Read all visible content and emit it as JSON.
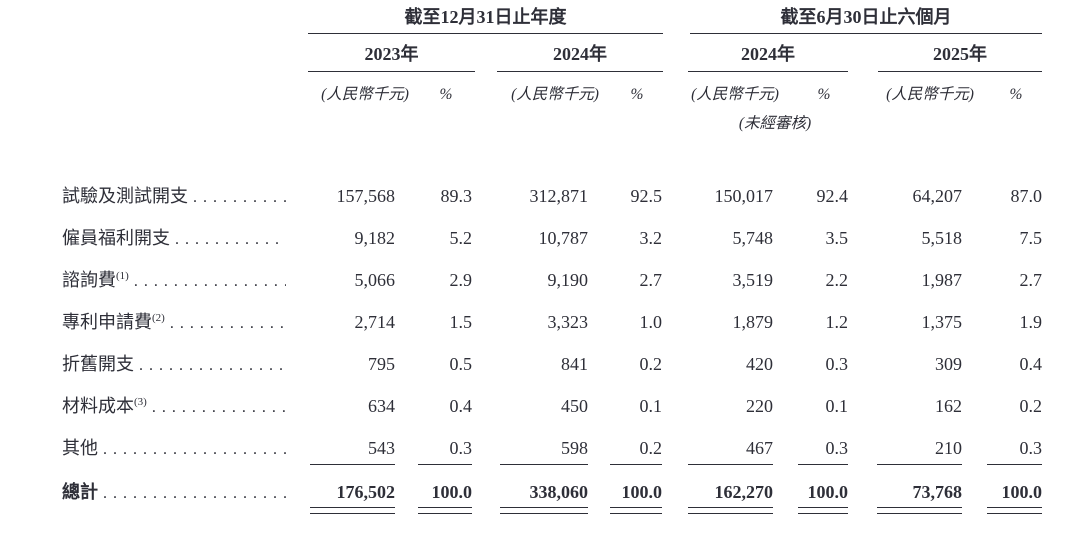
{
  "theme": {
    "ink": "#2e2f38"
  },
  "table": {
    "period_groups": [
      {
        "title": "截至12月31日止年度"
      },
      {
        "title": "截至6月30日止六個月"
      }
    ],
    "year_columns": [
      {
        "label": "2023年"
      },
      {
        "label": "2024年"
      },
      {
        "label": "2024年",
        "note": "(未經審核)"
      },
      {
        "label": "2025年"
      }
    ],
    "subheaders": {
      "amount": "(人民幣千元)",
      "percent": "%"
    },
    "rows": [
      {
        "label": "試驗及測試開支",
        "sup": "",
        "values": [
          "157,568",
          "89.3",
          "312,871",
          "92.5",
          "150,017",
          "92.4",
          "64,207",
          "87.0"
        ]
      },
      {
        "label": "僱員福利開支",
        "sup": "",
        "values": [
          "9,182",
          "5.2",
          "10,787",
          "3.2",
          "5,748",
          "3.5",
          "5,518",
          "7.5"
        ]
      },
      {
        "label": "諮詢費",
        "sup": "(1)",
        "values": [
          "5,066",
          "2.9",
          "9,190",
          "2.7",
          "3,519",
          "2.2",
          "1,987",
          "2.7"
        ]
      },
      {
        "label": "專利申請費",
        "sup": "(2)",
        "values": [
          "2,714",
          "1.5",
          "3,323",
          "1.0",
          "1,879",
          "1.2",
          "1,375",
          "1.9"
        ]
      },
      {
        "label": "折舊開支",
        "sup": "",
        "values": [
          "795",
          "0.5",
          "841",
          "0.2",
          "420",
          "0.3",
          "309",
          "0.4"
        ]
      },
      {
        "label": "材料成本",
        "sup": "(3)",
        "values": [
          "634",
          "0.4",
          "450",
          "0.1",
          "220",
          "0.1",
          "162",
          "0.2"
        ]
      },
      {
        "label": "其他",
        "sup": "",
        "values": [
          "543",
          "0.3",
          "598",
          "0.2",
          "467",
          "0.3",
          "210",
          "0.3"
        ]
      }
    ],
    "total": {
      "label": "總計",
      "values": [
        "176,502",
        "100.0",
        "338,060",
        "100.0",
        "162,270",
        "100.0",
        "73,768",
        "100.0"
      ]
    }
  }
}
